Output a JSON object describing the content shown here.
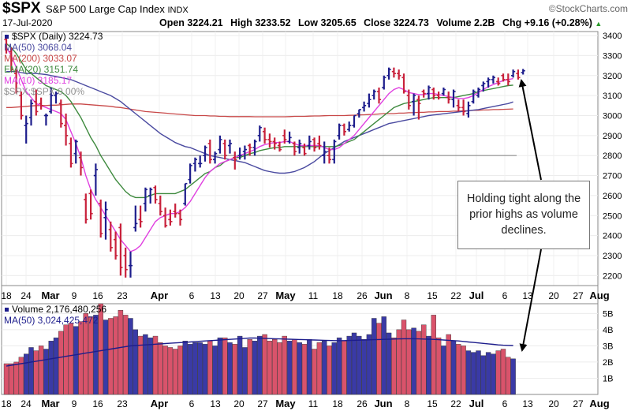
{
  "header": {
    "symbol": "$SPX",
    "name": "S&P 500 Large Cap Index",
    "exchange": "INDX",
    "date": "17-Jul-2020",
    "open": "Open 3224.21",
    "high": "High 3233.52",
    "low": "Low 3205.65",
    "close": "Close 3224.73",
    "volume": "Volume 2.2B",
    "chg": "Chg +9.16 (+0.28%)",
    "chg_arrow": "▲",
    "brand": "©StockCharts.com"
  },
  "legend": {
    "price": "$SPX (Daily) 3224.73",
    "ma50": "MA(50) 3068.04",
    "ma200": "MA(200) 3033.07",
    "ema20": "EMA(20) 3151.74",
    "ma10": "MA(10) 3185.17",
    "ratio": "$SPX:$SPX 0.00%"
  },
  "volume_legend": {
    "volume": "Volume 2,176,480,256",
    "ma50": "MA(50) 3,024,425,472"
  },
  "annotation": "Holding tight along the prior highs as volume declines.",
  "colors": {
    "up": "#1d1d8c",
    "down": "#c8203a",
    "ma50": "#4a4aa0",
    "ma200": "#c84848",
    "ema20": "#3e8a3e",
    "ma10": "#e040e0",
    "ratio": "#a0a0a0",
    "vol_up": "#3a3aa6",
    "vol_down": "#d9536b"
  },
  "chart_data": {
    "type": "bar",
    "x_axis_labels": [
      "18",
      "24",
      "Mar",
      "9",
      "16",
      "23",
      "Apr",
      "6",
      "13",
      "20",
      "27",
      "May",
      "11",
      "18",
      "26",
      "Jun",
      "8",
      "15",
      "22",
      "Jul",
      "6",
      "13",
      "20",
      "27",
      "Aug"
    ],
    "price_ylim": [
      2150,
      3420
    ],
    "price_ticks": [
      2200,
      2300,
      2400,
      2500,
      2600,
      2700,
      2800,
      2900,
      3000,
      3100,
      3200,
      3300,
      3400
    ],
    "ratio_level": 2800,
    "ohlc": [
      [
        3380,
        3390,
        3310,
        3330
      ],
      [
        3320,
        3340,
        3220,
        3230
      ],
      [
        3210,
        3230,
        3110,
        3120
      ],
      [
        3100,
        3120,
        2980,
        3000
      ],
      [
        2950,
        3000,
        2860,
        2960
      ],
      [
        2990,
        3080,
        2950,
        3060
      ],
      [
        3070,
        3130,
        3000,
        3020
      ],
      [
        3060,
        3090,
        3030,
        3050
      ],
      [
        3000,
        3010,
        2950,
        3000
      ],
      [
        3020,
        3140,
        3010,
        3100
      ],
      [
        3100,
        3120,
        3060,
        3110
      ],
      [
        3060,
        3080,
        2940,
        2960
      ],
      [
        2950,
        3010,
        2850,
        2900
      ],
      [
        2860,
        2890,
        2740,
        2760
      ],
      [
        2810,
        2880,
        2760,
        2870
      ],
      [
        2790,
        2820,
        2700,
        2740
      ],
      [
        2580,
        2610,
        2460,
        2480
      ],
      [
        2610,
        2630,
        2480,
        2510
      ],
      [
        2700,
        2760,
        2600,
        2730
      ],
      [
        2560,
        2580,
        2390,
        2410
      ],
      [
        2490,
        2570,
        2380,
        2530
      ],
      [
        2430,
        2470,
        2320,
        2340
      ],
      [
        2380,
        2420,
        2280,
        2300
      ],
      [
        2440,
        2460,
        2200,
        2240
      ],
      [
        2300,
        2340,
        2190,
        2230
      ],
      [
        2250,
        2320,
        2190,
        2250
      ],
      [
        2440,
        2550,
        2420,
        2460
      ],
      [
        2480,
        2550,
        2440,
        2470
      ],
      [
        2560,
        2640,
        2520,
        2630
      ],
      [
        2600,
        2640,
        2560,
        2630
      ],
      [
        2640,
        2650,
        2560,
        2580
      ],
      [
        2560,
        2600,
        2500,
        2520
      ],
      [
        2500,
        2540,
        2440,
        2450
      ],
      [
        2480,
        2530,
        2450,
        2470
      ],
      [
        2520,
        2560,
        2490,
        2510
      ],
      [
        2510,
        2530,
        2450,
        2480
      ],
      [
        2560,
        2660,
        2550,
        2660
      ],
      [
        2680,
        2760,
        2660,
        2750
      ],
      [
        2760,
        2790,
        2720,
        2780
      ],
      [
        2760,
        2800,
        2740,
        2760
      ],
      [
        2800,
        2850,
        2770,
        2840
      ],
      [
        2860,
        2880,
        2760,
        2780
      ],
      [
        2780,
        2820,
        2760,
        2810
      ],
      [
        2830,
        2900,
        2810,
        2880
      ],
      [
        2860,
        2880,
        2780,
        2800
      ],
      [
        2850,
        2880,
        2810,
        2860
      ],
      [
        2790,
        2820,
        2730,
        2780
      ],
      [
        2800,
        2840,
        2780,
        2800
      ],
      [
        2820,
        2850,
        2780,
        2830
      ],
      [
        2850,
        2860,
        2800,
        2840
      ],
      [
        2840,
        2880,
        2800,
        2870
      ],
      [
        2900,
        2950,
        2870,
        2940
      ],
      [
        2920,
        2940,
        2860,
        2880
      ],
      [
        2880,
        2910,
        2840,
        2870
      ],
      [
        2870,
        2890,
        2830,
        2860
      ],
      [
        2850,
        2870,
        2820,
        2830
      ],
      [
        2900,
        2930,
        2860,
        2880
      ],
      [
        2870,
        2920,
        2860,
        2890
      ],
      [
        2860,
        2870,
        2800,
        2820
      ],
      [
        2840,
        2880,
        2810,
        2860
      ],
      [
        2840,
        2860,
        2800,
        2810
      ],
      [
        2850,
        2900,
        2830,
        2870
      ],
      [
        2880,
        2890,
        2820,
        2840
      ],
      [
        2860,
        2900,
        2830,
        2850
      ],
      [
        2800,
        2870,
        2760,
        2820
      ],
      [
        2800,
        2840,
        2760,
        2780
      ],
      [
        2780,
        2880,
        2760,
        2870
      ],
      [
        2900,
        2960,
        2880,
        2950
      ],
      [
        2950,
        2960,
        2900,
        2920
      ],
      [
        2930,
        2970,
        2920,
        2950
      ],
      [
        2950,
        3000,
        2940,
        3000
      ],
      [
        3010,
        3030,
        2990,
        3030
      ],
      [
        3040,
        3070,
        3020,
        3050
      ],
      [
        3060,
        3110,
        3040,
        3080
      ],
      [
        3100,
        3130,
        3080,
        3120
      ],
      [
        3120,
        3140,
        3060,
        3080
      ],
      [
        3140,
        3200,
        3130,
        3190
      ],
      [
        3200,
        3240,
        3180,
        3230
      ],
      [
        3220,
        3240,
        3190,
        3210
      ],
      [
        3210,
        3230,
        3180,
        3200
      ],
      [
        3190,
        3210,
        3110,
        3120
      ],
      [
        3100,
        3130,
        3030,
        3050
      ],
      [
        3070,
        3110,
        3000,
        3100
      ],
      [
        3080,
        3100,
        2980,
        3060
      ],
      [
        3120,
        3130,
        3090,
        3110
      ],
      [
        3110,
        3150,
        3080,
        3140
      ],
      [
        3130,
        3140,
        3080,
        3100
      ],
      [
        3100,
        3120,
        3080,
        3090
      ],
      [
        3110,
        3140,
        3100,
        3130
      ],
      [
        3090,
        3120,
        3060,
        3080
      ],
      [
        3080,
        3130,
        3040,
        3120
      ],
      [
        3050,
        3080,
        3020,
        3040
      ],
      [
        3040,
        3080,
        3000,
        3020
      ],
      [
        3010,
        3070,
        2990,
        3050
      ],
      [
        3070,
        3130,
        3060,
        3120
      ],
      [
        3100,
        3140,
        3090,
        3130
      ],
      [
        3150,
        3170,
        3120,
        3160
      ],
      [
        3170,
        3190,
        3140,
        3180
      ],
      [
        3180,
        3200,
        3160,
        3190
      ],
      [
        3170,
        3190,
        3150,
        3160
      ],
      [
        3200,
        3210,
        3170,
        3180
      ],
      [
        3180,
        3210,
        3150,
        3170
      ],
      [
        3200,
        3230,
        3190,
        3220
      ],
      [
        3210,
        3230,
        3180,
        3190
      ],
      [
        3215,
        3233,
        3205,
        3224
      ]
    ],
    "ma10": [
      3340,
      3300,
      3240,
      3180,
      3120,
      3090,
      3060,
      3050,
      3040,
      3030,
      3020,
      3010,
      2980,
      2920,
      2860,
      2790,
      2700,
      2630,
      2580,
      2540,
      2500,
      2460,
      2420,
      2380,
      2350,
      2320,
      2330,
      2350,
      2390,
      2430,
      2470,
      2490,
      2500,
      2510,
      2510,
      2520,
      2540,
      2570,
      2610,
      2650,
      2690,
      2720,
      2740,
      2760,
      2770,
      2780,
      2790,
      2800,
      2810,
      2820,
      2830,
      2845,
      2855,
      2860,
      2865,
      2865,
      2870,
      2870,
      2860,
      2850,
      2850,
      2850,
      2850,
      2850,
      2840,
      2830,
      2830,
      2840,
      2860,
      2880,
      2900,
      2930,
      2960,
      2990,
      3020,
      3050,
      3080,
      3110,
      3130,
      3140,
      3130,
      3115,
      3110,
      3105,
      3105,
      3110,
      3110,
      3105,
      3100,
      3095,
      3090,
      3085,
      3085,
      3090,
      3100,
      3115,
      3130,
      3145,
      3155,
      3165,
      3175,
      3180,
      3185
    ],
    "ema20": [
      3360,
      3340,
      3310,
      3270,
      3230,
      3210,
      3190,
      3170,
      3150,
      3140,
      3130,
      3120,
      3100,
      3070,
      3030,
      2990,
      2940,
      2890,
      2850,
      2800,
      2760,
      2720,
      2680,
      2650,
      2620,
      2600,
      2590,
      2590,
      2590,
      2600,
      2610,
      2610,
      2610,
      2610,
      2610,
      2620,
      2630,
      2650,
      2670,
      2690,
      2710,
      2720,
      2740,
      2750,
      2770,
      2780,
      2790,
      2790,
      2800,
      2810,
      2815,
      2825,
      2830,
      2835,
      2840,
      2840,
      2845,
      2845,
      2845,
      2845,
      2845,
      2845,
      2845,
      2845,
      2845,
      2845,
      2845,
      2850,
      2860,
      2870,
      2880,
      2900,
      2920,
      2940,
      2960,
      2980,
      3000,
      3020,
      3040,
      3050,
      3060,
      3065,
      3070,
      3075,
      3080,
      3085,
      3090,
      3090,
      3090,
      3090,
      3090,
      3095,
      3100,
      3105,
      3110,
      3120,
      3125,
      3130,
      3135,
      3140,
      3145,
      3150,
      3152
    ],
    "ma50": [
      3220,
      3220,
      3220,
      3215,
      3210,
      3210,
      3210,
      3208,
      3205,
      3200,
      3195,
      3190,
      3185,
      3180,
      3170,
      3160,
      3150,
      3140,
      3130,
      3120,
      3110,
      3100,
      3085,
      3070,
      3050,
      3030,
      3010,
      2990,
      2970,
      2950,
      2930,
      2910,
      2895,
      2880,
      2865,
      2855,
      2845,
      2840,
      2830,
      2820,
      2810,
      2800,
      2795,
      2790,
      2785,
      2780,
      2775,
      2770,
      2765,
      2755,
      2745,
      2735,
      2725,
      2720,
      2715,
      2712,
      2712,
      2715,
      2720,
      2730,
      2740,
      2755,
      2770,
      2790,
      2810,
      2825,
      2840,
      2855,
      2870,
      2880,
      2890,
      2900,
      2910,
      2920,
      2930,
      2940,
      2950,
      2960,
      2965,
      2970,
      2975,
      2980,
      2985,
      2990,
      2995,
      3000,
      3003,
      3006,
      3009,
      3012,
      3015,
      3018,
      3021,
      3024,
      3027,
      3030,
      3035,
      3040,
      3045,
      3050,
      3055,
      3060,
      3068
    ],
    "ma200": [
      3040,
      3040,
      3042,
      3044,
      3046,
      3048,
      3050,
      3050,
      3050,
      3052,
      3052,
      3054,
      3056,
      3058,
      3058,
      3058,
      3056,
      3054,
      3052,
      3050,
      3048,
      3046,
      3042,
      3040,
      3036,
      3032,
      3028,
      3024,
      3020,
      3018,
      3016,
      3014,
      3012,
      3010,
      3008,
      3006,
      3004,
      3002,
      3000,
      3000,
      3000,
      2998,
      2998,
      2996,
      2996,
      2995,
      2995,
      2995,
      2995,
      2995,
      2994,
      2994,
      2994,
      2994,
      2994,
      2994,
      2994,
      2995,
      2996,
      2996,
      2996,
      2997,
      2998,
      2998,
      2999,
      3000,
      3000,
      3000,
      3000,
      3001,
      3002,
      3003,
      3004,
      3005,
      3006,
      3008,
      3010,
      3010,
      3010,
      3012,
      3012,
      3014,
      3014,
      3016,
      3016,
      3018,
      3018,
      3020,
      3020,
      3020,
      3022,
      3022,
      3024,
      3024,
      3026,
      3026,
      3028,
      3028,
      3030,
      3030,
      3031,
      3032,
      3033
    ],
    "volume_ticks": [
      "1B",
      "2B",
      "3B",
      "4B",
      "5B"
    ],
    "volume_ylim": [
      0,
      5.6
    ],
    "volume_billions": [
      1.9,
      1.9,
      2.0,
      2.3,
      2.5,
      2.9,
      2.7,
      3.0,
      2.8,
      3.3,
      3.5,
      3.9,
      4.3,
      4.4,
      4.2,
      4.5,
      5.0,
      4.8,
      4.9,
      5.6,
      4.6,
      4.7,
      4.8,
      5.2,
      4.9,
      4.7,
      4.0,
      3.6,
      3.7,
      3.5,
      3.6,
      3.2,
      3.0,
      2.9,
      2.8,
      3.0,
      3.3,
      3.1,
      3.2,
      3.2,
      3.1,
      3.3,
      3.0,
      3.5,
      3.5,
      3.2,
      3.1,
      3.6,
      2.9,
      3.4,
      3.3,
      3.6,
      3.7,
      3.3,
      3.4,
      3.2,
      3.6,
      3.3,
      3.4,
      3.2,
      3.1,
      3.4,
      2.8,
      3.2,
      3.3,
      3.0,
      3.2,
      3.5,
      3.3,
      3.6,
      3.8,
      3.6,
      3.4,
      3.7,
      4.7,
      4.4,
      4.8,
      3.8,
      3.5,
      4.0,
      4.6,
      4.0,
      4.1,
      3.9,
      4.3,
      3.6,
      4.9,
      3.5,
      3.0,
      3.7,
      3.3,
      3.1,
      3.0,
      2.7,
      2.6,
      2.7,
      2.4,
      2.6,
      2.5,
      2.7,
      2.8,
      2.3,
      2.2
    ],
    "volume_ma50": [
      1.75,
      1.8,
      1.85,
      1.9,
      1.95,
      2.0,
      2.05,
      2.1,
      2.15,
      2.2,
      2.25,
      2.3,
      2.35,
      2.4,
      2.45,
      2.5,
      2.55,
      2.6,
      2.65,
      2.7,
      2.75,
      2.8,
      2.85,
      2.9,
      2.95,
      3.0,
      3.02,
      3.04,
      3.06,
      3.08,
      3.1,
      3.12,
      3.14,
      3.16,
      3.18,
      3.2,
      3.22,
      3.24,
      3.26,
      3.28,
      3.3,
      3.32,
      3.34,
      3.36,
      3.38,
      3.4,
      3.42,
      3.44,
      3.46,
      3.48,
      3.48,
      3.47,
      3.46,
      3.45,
      3.44,
      3.43,
      3.42,
      3.41,
      3.4,
      3.39,
      3.38,
      3.37,
      3.36,
      3.35,
      3.34,
      3.33,
      3.32,
      3.32,
      3.32,
      3.33,
      3.34,
      3.35,
      3.36,
      3.37,
      3.38,
      3.39,
      3.4,
      3.41,
      3.42,
      3.43,
      3.44,
      3.44,
      3.44,
      3.43,
      3.42,
      3.41,
      3.4,
      3.38,
      3.36,
      3.34,
      3.32,
      3.3,
      3.27,
      3.24,
      3.21,
      3.18,
      3.15,
      3.12,
      3.09,
      3.06,
      3.04,
      3.03,
      3.02
    ]
  }
}
